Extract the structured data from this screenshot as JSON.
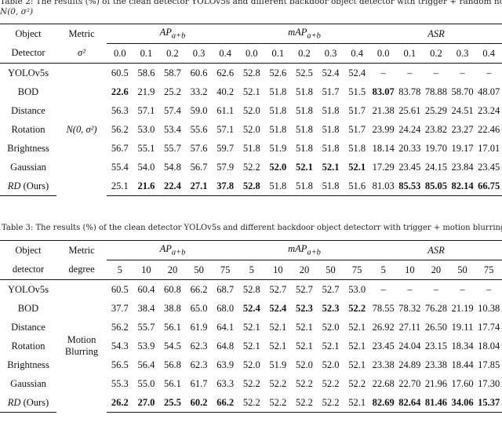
{
  "caption_top_1": "Table 2:  The results (%) of the clean detector YOLOv5s and different backdoor object detector with trigger + random noise",
  "caption_top_2": "N(0, σ²)",
  "caption_mid": "Table 3:  The results (%) of the clean detector YOLOv5s and different backdoor object detectorr with trigger + motion blurring",
  "table2": {
    "header": {
      "col1_line1": "Object",
      "col1_line2": "Detector",
      "col2_line1": "Metric",
      "col2_line2": "σ²",
      "group_ap": "AP",
      "group_ap_sub": "a+b",
      "group_map": "mAP",
      "group_map_sub": "a+b",
      "group_asr": "ASR",
      "levels": [
        "0.0",
        "0.1",
        "0.2",
        "0.3",
        "0.4"
      ]
    },
    "condition": "N(0, σ²)",
    "rows": [
      {
        "name": "YOLOv5s",
        "vals": [
          "60.5",
          "58.6",
          "58.7",
          "60.6",
          "62.6",
          "52.8",
          "52.6",
          "52.5",
          "52.4",
          "52.4",
          "–",
          "–",
          "–",
          "–",
          "–"
        ],
        "bold": []
      },
      {
        "name": "BOD",
        "vals": [
          "22.6",
          "21.9",
          "25.2",
          "33.2",
          "40.2",
          "52.1",
          "51.8",
          "51.8",
          "51.7",
          "51.5",
          "83.07",
          "83.78",
          "78.88",
          "58.70",
          "48.07"
        ],
        "bold": [
          0,
          10
        ]
      },
      {
        "name": "Distance",
        "vals": [
          "56.3",
          "57.1",
          "57.4",
          "59.0",
          "61.1",
          "52.0",
          "51.8",
          "51.8",
          "51.8",
          "51.7",
          "21.38",
          "25.61",
          "25.29",
          "24.51",
          "23.24"
        ],
        "bold": []
      },
      {
        "name": "Rotation",
        "vals": [
          "56.2",
          "53.0",
          "53.4",
          "55.6",
          "57.1",
          "52.0",
          "51.8",
          "51.8",
          "51.8",
          "51.7",
          "23.99",
          "24.24",
          "23.82",
          "23.27",
          "22.46"
        ],
        "bold": []
      },
      {
        "name": "Brightness",
        "vals": [
          "56.7",
          "55.1",
          "55.7",
          "57.6",
          "59.7",
          "51.8",
          "51.9",
          "51.8",
          "51.8",
          "51.8",
          "18.14",
          "20.33",
          "19.70",
          "19.17",
          "17.01"
        ],
        "bold": []
      },
      {
        "name": "Gaussian",
        "vals": [
          "55.4",
          "54.0",
          "54.8",
          "56.7",
          "57.9",
          "52.2",
          "52.0",
          "52.1",
          "52.1",
          "52.1",
          "17.29",
          "23.45",
          "24.15",
          "23.84",
          "23.45"
        ],
        "bold": [
          6,
          7,
          8,
          9
        ]
      },
      {
        "name_it": "RD",
        "name_rest": " (Ours)",
        "vals": [
          "25.1",
          "21.6",
          "22.4",
          "27.1",
          "37.8",
          "52.8",
          "51.8",
          "51.8",
          "51.8",
          "51.6",
          "81.03",
          "85.53",
          "85.05",
          "82.14",
          "66.75"
        ],
        "bold": [
          1,
          2,
          3,
          4,
          5,
          11,
          12,
          13,
          14
        ]
      }
    ]
  },
  "table3": {
    "header": {
      "col1_line1": "Object",
      "col1_line2": "detector",
      "col2_line1": "Metric",
      "col2_line2": "degree",
      "group_ap": "AP",
      "group_ap_sub": "a+b",
      "group_map": "mAP",
      "group_map_sub": "a+b",
      "group_asr": "ASR",
      "levels": [
        "5",
        "10",
        "20",
        "50",
        "75"
      ]
    },
    "condition_1": "Motion",
    "condition_2": "Blurring",
    "rows": [
      {
        "name": "YOLOv5s",
        "vals": [
          "60.5",
          "60.4",
          "60.8",
          "66.2",
          "68.7",
          "52.8",
          "52.7",
          "52.7",
          "52.7",
          "53.0",
          "–",
          "–",
          "–",
          "–",
          "–"
        ],
        "bold": []
      },
      {
        "name": "BOD",
        "vals": [
          "37.7",
          "38.4",
          "38.8",
          "65.0",
          "68.0",
          "52.4",
          "52.4",
          "52.3",
          "52.3",
          "52.2",
          "78.55",
          "78.32",
          "76.28",
          "21.19",
          "10.38"
        ],
        "bold": [
          5,
          6,
          7,
          8,
          9
        ]
      },
      {
        "name": "Distance",
        "vals": [
          "56.2",
          "55.7",
          "56.1",
          "61.9",
          "64.1",
          "52.1",
          "52.1",
          "52.1",
          "52.0",
          "52.1",
          "26.92",
          "27.11",
          "26.50",
          "19.11",
          "17.74"
        ],
        "bold": []
      },
      {
        "name": "Rotation",
        "vals": [
          "54.3",
          "53.9",
          "54.5",
          "62.3",
          "64.8",
          "52.1",
          "52.1",
          "52.1",
          "52.1",
          "52.1",
          "23.45",
          "24.04",
          "23.15",
          "18.34",
          "18.04"
        ],
        "bold": []
      },
      {
        "name": "Brightness",
        "vals": [
          "56.5",
          "56.4",
          "56.8",
          "62.3",
          "63.9",
          "52.0",
          "51.9",
          "52.0",
          "52.0",
          "52.1",
          "23.38",
          "24.89",
          "23.38",
          "18.44",
          "17.85"
        ],
        "bold": []
      },
      {
        "name": "Gaussian",
        "vals": [
          "55.3",
          "55.0",
          "56.1",
          "61.7",
          "63.3",
          "52.2",
          "52.2",
          "52.2",
          "52.2",
          "52.2",
          "22.68",
          "22.70",
          "21.96",
          "17.60",
          "17.30"
        ],
        "bold": []
      },
      {
        "name_it": "RD",
        "name_rest": " (Ours)",
        "vals": [
          "26.2",
          "27.0",
          "25.5",
          "60.2",
          "66.2",
          "52.2",
          "52.2",
          "52.2",
          "52.2",
          "52.1",
          "82.69",
          "82.64",
          "81.46",
          "34.06",
          "15.37"
        ],
        "bold": [
          0,
          1,
          2,
          3,
          4,
          10,
          11,
          12,
          13,
          14
        ]
      }
    ]
  }
}
